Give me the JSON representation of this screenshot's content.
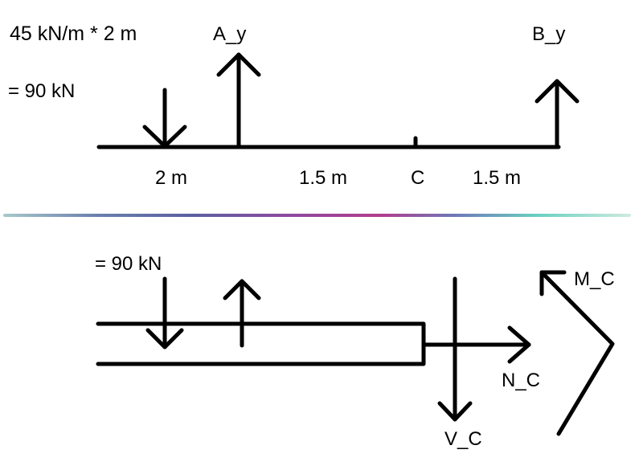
{
  "top": {
    "load_expression": "45 kN/m * 2 m",
    "load_result": "= 90 kN",
    "reaction_a": "A_y",
    "reaction_b": "B_y",
    "dim_1": "2 m",
    "dim_2": "1.5 m",
    "point_c": "C",
    "dim_3": "1.5 m"
  },
  "divider": {
    "colors": [
      "#9fc4c8",
      "#5a6b9c",
      "#b03a8c",
      "#7a5cb0",
      "#6fd0c0",
      "#c8e8d8"
    ]
  },
  "bottom": {
    "load_result": "= 90 kN",
    "normal_force": "N_C",
    "shear_force": "V_C",
    "moment": "M_C"
  }
}
